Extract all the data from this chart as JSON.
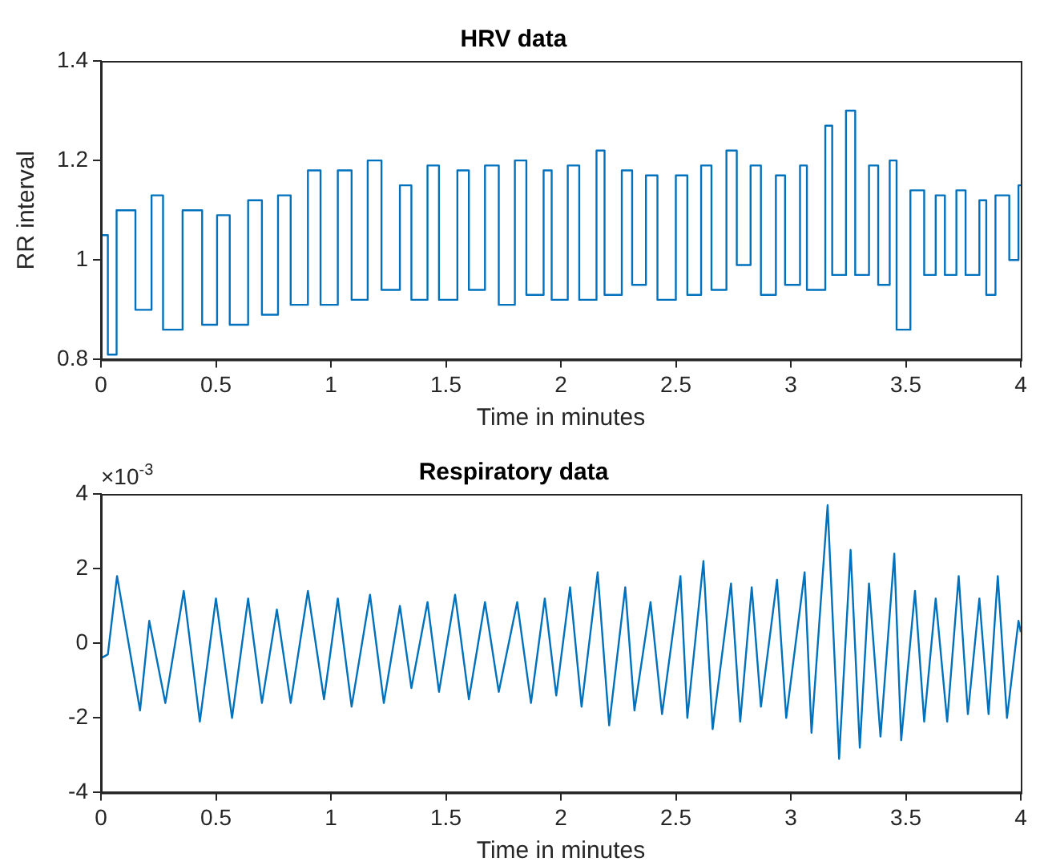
{
  "chart_data": [
    {
      "type": "step",
      "title": "HRV data",
      "xlabel": "Time in minutes",
      "ylabel": "RR interval",
      "x": [
        0,
        0.03,
        0.068,
        0.15,
        0.22,
        0.27,
        0.355,
        0.44,
        0.505,
        0.56,
        0.64,
        0.7,
        0.77,
        0.825,
        0.9,
        0.955,
        1.03,
        1.09,
        1.16,
        1.22,
        1.3,
        1.35,
        1.42,
        1.47,
        1.55,
        1.6,
        1.67,
        1.73,
        1.8,
        1.85,
        1.925,
        1.96,
        2.03,
        2.08,
        2.155,
        2.19,
        2.265,
        2.31,
        2.37,
        2.42,
        2.5,
        2.55,
        2.61,
        2.655,
        2.72,
        2.765,
        2.825,
        2.87,
        2.935,
        2.975,
        3.04,
        3.07,
        3.15,
        3.18,
        3.24,
        3.28,
        3.34,
        3.38,
        3.43,
        3.46,
        3.52,
        3.58,
        3.63,
        3.67,
        3.72,
        3.76,
        3.82,
        3.85,
        3.89,
        3.95,
        3.99,
        4
      ],
      "series": [
        {
          "color": "#0072bd",
          "values": [
            1.04,
            1.05,
            0.81,
            1.1,
            0.9,
            1.13,
            0.86,
            1.1,
            0.87,
            1.09,
            0.87,
            1.12,
            0.89,
            1.13,
            0.91,
            1.18,
            0.91,
            1.18,
            0.92,
            1.2,
            0.94,
            1.15,
            0.92,
            1.19,
            0.92,
            1.18,
            0.94,
            1.19,
            0.91,
            1.2,
            0.93,
            1.18,
            0.92,
            1.19,
            0.92,
            1.22,
            0.93,
            1.18,
            0.95,
            1.17,
            0.92,
            1.17,
            0.93,
            1.19,
            0.94,
            1.22,
            0.99,
            1.19,
            0.93,
            1.17,
            0.95,
            1.19,
            0.94,
            1.27,
            0.97,
            1.3,
            0.97,
            1.19,
            0.95,
            1.2,
            0.86,
            1.14,
            0.97,
            1.13,
            0.97,
            1.14,
            0.97,
            1.12,
            0.93,
            1.13,
            1.0,
            1.15
          ]
        }
      ],
      "xlim": [
        0,
        4
      ],
      "xticks": [
        0,
        0.5,
        1,
        1.5,
        2,
        2.5,
        3,
        3.5,
        4
      ],
      "ylim": [
        0.8,
        1.4
      ],
      "yticks": [
        0.8,
        1,
        1.2,
        1.4
      ],
      "grid": false,
      "legend": false,
      "marker": "none",
      "line_style": "solid"
    },
    {
      "type": "line",
      "title": "Respiratory data",
      "xlabel": "Time in minutes",
      "annotations": [
        "×10$^{-3}$"
      ],
      "x": [
        0,
        0.03,
        0.07,
        0.17,
        0.21,
        0.28,
        0.36,
        0.43,
        0.5,
        0.57,
        0.64,
        0.7,
        0.765,
        0.825,
        0.9,
        0.97,
        1.03,
        1.09,
        1.17,
        1.23,
        1.3,
        1.35,
        1.42,
        1.47,
        1.54,
        1.6,
        1.67,
        1.73,
        1.81,
        1.87,
        1.93,
        1.98,
        2.04,
        2.09,
        2.16,
        2.21,
        2.28,
        2.32,
        2.39,
        2.44,
        2.52,
        2.55,
        2.62,
        2.66,
        2.74,
        2.78,
        2.83,
        2.87,
        2.94,
        2.98,
        3.06,
        3.09,
        3.16,
        3.21,
        3.26,
        3.3,
        3.34,
        3.39,
        3.45,
        3.48,
        3.54,
        3.58,
        3.63,
        3.68,
        3.73,
        3.77,
        3.82,
        3.86,
        3.9,
        3.94,
        3.99,
        4
      ],
      "series": [
        {
          "color": "#0072bd",
          "values": [
            -0.4,
            -0.3,
            1.8,
            -1.8,
            0.6,
            -1.6,
            1.4,
            -2.1,
            1.2,
            -2.0,
            1.2,
            -1.6,
            0.9,
            -1.6,
            1.4,
            -1.5,
            1.2,
            -1.7,
            1.3,
            -1.6,
            1.0,
            -1.2,
            1.1,
            -1.3,
            1.3,
            -1.5,
            1.1,
            -1.3,
            1.1,
            -1.6,
            1.2,
            -1.4,
            1.5,
            -1.7,
            1.9,
            -2.2,
            1.5,
            -1.8,
            1.1,
            -1.9,
            1.8,
            -2.0,
            2.2,
            -2.3,
            1.6,
            -2.1,
            1.5,
            -1.7,
            1.7,
            -2.0,
            1.9,
            -2.4,
            3.7,
            -3.1,
            2.5,
            -2.8,
            1.6,
            -2.5,
            2.4,
            -2.6,
            1.4,
            -2.1,
            1.2,
            -2.1,
            1.8,
            -1.9,
            1.2,
            -1.9,
            1.8,
            -2.0,
            0.6,
            0.3
          ]
        }
      ],
      "xlim": [
        0,
        4
      ],
      "xticks": [
        0,
        0.5,
        1,
        1.5,
        2,
        2.5,
        3,
        3.5,
        4
      ],
      "ylim": [
        -4,
        4
      ],
      "yticks": [
        -4,
        -2,
        0,
        2,
        4
      ],
      "grid": false,
      "legend": false,
      "marker": "none",
      "line_style": "solid"
    }
  ]
}
